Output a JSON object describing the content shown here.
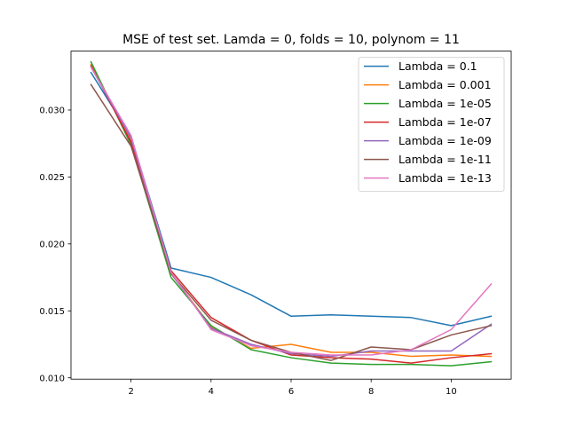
{
  "chart_data": {
    "type": "line",
    "title": "MSE of test set. Lamda = 0, folds = 10, polynom = 11",
    "xlabel": "",
    "ylabel": "",
    "x": [
      1,
      2,
      3,
      4,
      5,
      6,
      7,
      8,
      9,
      10,
      11
    ],
    "xlim": [
      0.5,
      11.5
    ],
    "ylim": [
      0.0099,
      0.0344
    ],
    "xticks": [
      2,
      4,
      6,
      8,
      10
    ],
    "yticks": [
      0.01,
      0.015,
      0.02,
      0.025,
      0.03
    ],
    "ytick_labels": [
      "0.010",
      "0.015",
      "0.020",
      "0.025",
      "0.030"
    ],
    "grid": false,
    "legend_position": "top-right",
    "series": [
      {
        "name": "Lambda = 0.1",
        "color": "#1f77b4",
        "values": [
          0.0328,
          0.028,
          0.0182,
          0.0175,
          0.0162,
          0.0146,
          0.0147,
          0.0146,
          0.0145,
          0.0139,
          0.0146
        ]
      },
      {
        "name": "Lambda = 0.001",
        "color": "#ff7f0e",
        "values": [
          0.0334,
          0.0278,
          0.0178,
          0.0138,
          0.0122,
          0.0125,
          0.0119,
          0.0119,
          0.0116,
          0.0117,
          0.0116
        ]
      },
      {
        "name": "Lambda = 1e-05",
        "color": "#2ca02c",
        "values": [
          0.0336,
          0.0274,
          0.0175,
          0.0139,
          0.0121,
          0.0115,
          0.0111,
          0.011,
          0.011,
          0.0109,
          0.0112
        ]
      },
      {
        "name": "Lambda = 1e-07",
        "color": "#d62728",
        "values": [
          0.0333,
          0.0276,
          0.018,
          0.0145,
          0.0128,
          0.0117,
          0.0115,
          0.0114,
          0.0111,
          0.0115,
          0.0118
        ]
      },
      {
        "name": "Lambda = 1e-09",
        "color": "#9467bd",
        "values": [
          0.0332,
          0.0279,
          0.0178,
          0.0137,
          0.0125,
          0.0118,
          0.0116,
          0.012,
          0.012,
          0.012,
          0.014
        ]
      },
      {
        "name": "Lambda = 1e-11",
        "color": "#8c564b",
        "values": [
          0.0319,
          0.0273,
          0.0178,
          0.0143,
          0.0128,
          0.0119,
          0.0113,
          0.0123,
          0.0121,
          0.0132,
          0.0139
        ]
      },
      {
        "name": "Lambda = 1e-13",
        "color": "#e377c2",
        "values": [
          0.0332,
          0.0281,
          0.0179,
          0.0136,
          0.0124,
          0.0119,
          0.0117,
          0.0117,
          0.0121,
          0.0136,
          0.017
        ]
      }
    ]
  }
}
